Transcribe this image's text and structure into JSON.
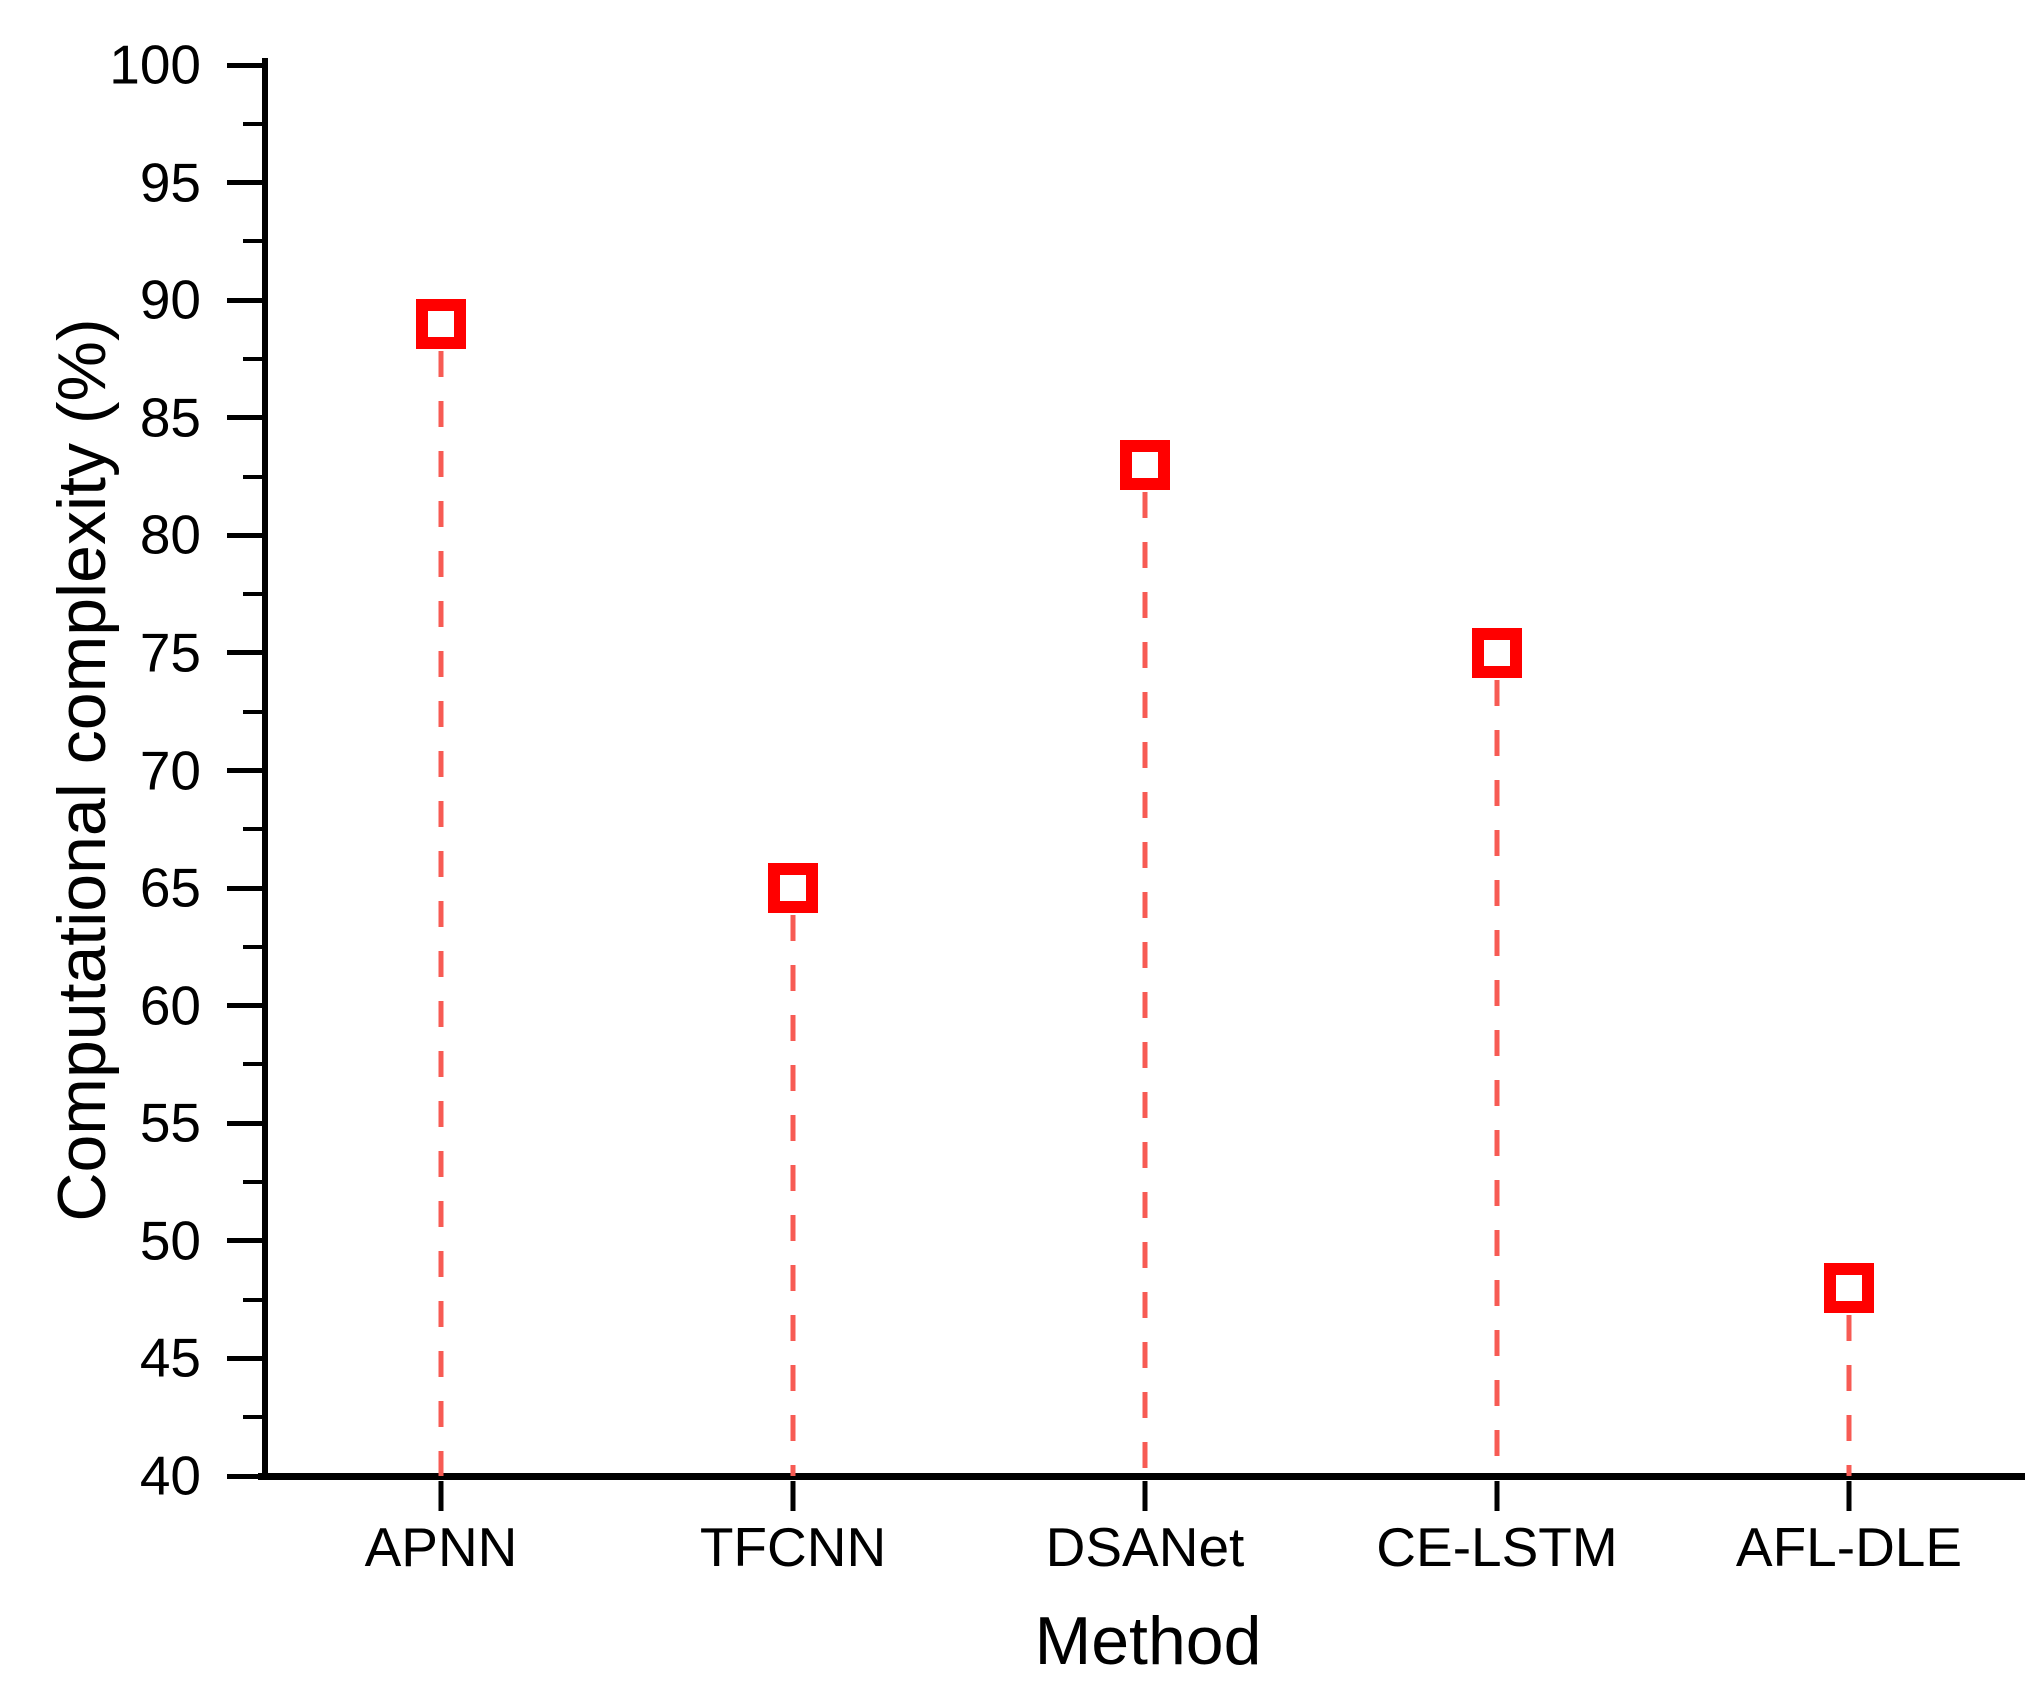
{
  "chart_data": {
    "type": "scatter",
    "subtype": "stem-lollipop",
    "xlabel": "Method",
    "ylabel": "Computational complexity (%)",
    "categories": [
      "APNN",
      "TFCNN",
      "DSANet",
      "CE-LSTM",
      "AFL-DLE"
    ],
    "series": [
      {
        "name": "Computational complexity",
        "values": [
          89,
          65,
          83,
          75,
          48
        ]
      }
    ],
    "ylim": [
      40,
      100
    ],
    "y_major_tick_step": 5,
    "y_minor_tick_step": 2.5,
    "y_tick_labels": [
      "40",
      "45",
      "50",
      "55",
      "60",
      "65",
      "70",
      "75",
      "80",
      "85",
      "90",
      "95",
      "100"
    ],
    "grid": false,
    "legend_position": "none",
    "marker_shape": "open-square",
    "marker_color": "#ff0000",
    "marker_fill": "#ffffff",
    "stem_line_style": "dashed",
    "stem_color": "#f75b54",
    "axis_color": "#000000",
    "text_color": "#000000",
    "background_color": "#ffffff"
  }
}
